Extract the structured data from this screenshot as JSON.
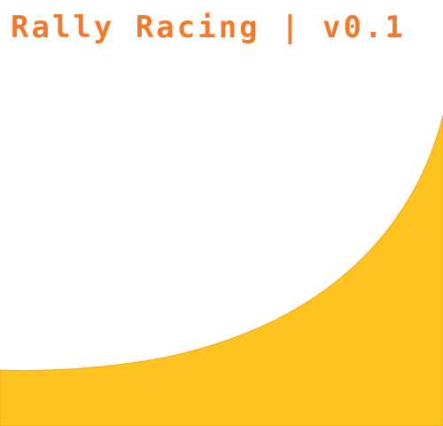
{
  "title": "Rally Racing | v0.1",
  "colors": {
    "title": "#F07A2C",
    "terrain": "#FDC31E",
    "terrain_edge": "#F4A51A",
    "background": "#FFFFFF"
  }
}
